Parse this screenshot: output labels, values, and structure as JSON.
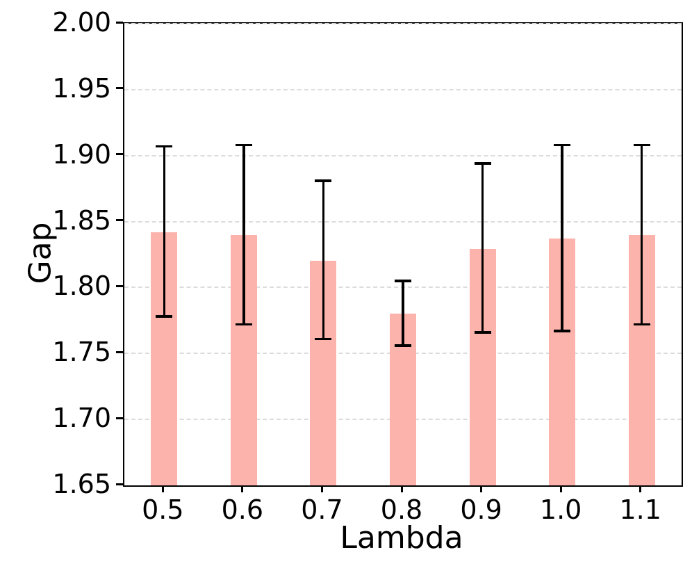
{
  "figure": {
    "background_color": "#ffffff",
    "bar_color": "#FBB3AC",
    "error_bar_color": "#000000",
    "grid_color": "#dcdcdc",
    "spine_color": "#000000",
    "text_color": "#000000"
  },
  "chart_data": {
    "type": "bar",
    "title": "",
    "xlabel": "Lambda",
    "ylabel": "Gap",
    "categories": [
      "0.5",
      "0.6",
      "0.7",
      "0.8",
      "0.9",
      "1.0",
      "1.1"
    ],
    "values": [
      1.842,
      1.84,
      1.82,
      1.78,
      1.829,
      1.837,
      1.84
    ],
    "error_upper": [
      1.907,
      1.908,
      1.881,
      1.805,
      1.894,
      1.908,
      1.908
    ],
    "error_lower": [
      1.778,
      1.772,
      1.761,
      1.756,
      1.766,
      1.767,
      1.772
    ],
    "ylim": [
      1.65,
      2.0
    ],
    "ytick_labels": [
      "1.65",
      "1.70",
      "1.75",
      "1.80",
      "1.85",
      "1.90",
      "1.95",
      "2.00"
    ],
    "ytick_values": [
      1.65,
      1.7,
      1.75,
      1.8,
      1.85,
      1.9,
      1.95,
      2.0
    ],
    "grid": "horizontal-dashed",
    "legend": "none"
  }
}
